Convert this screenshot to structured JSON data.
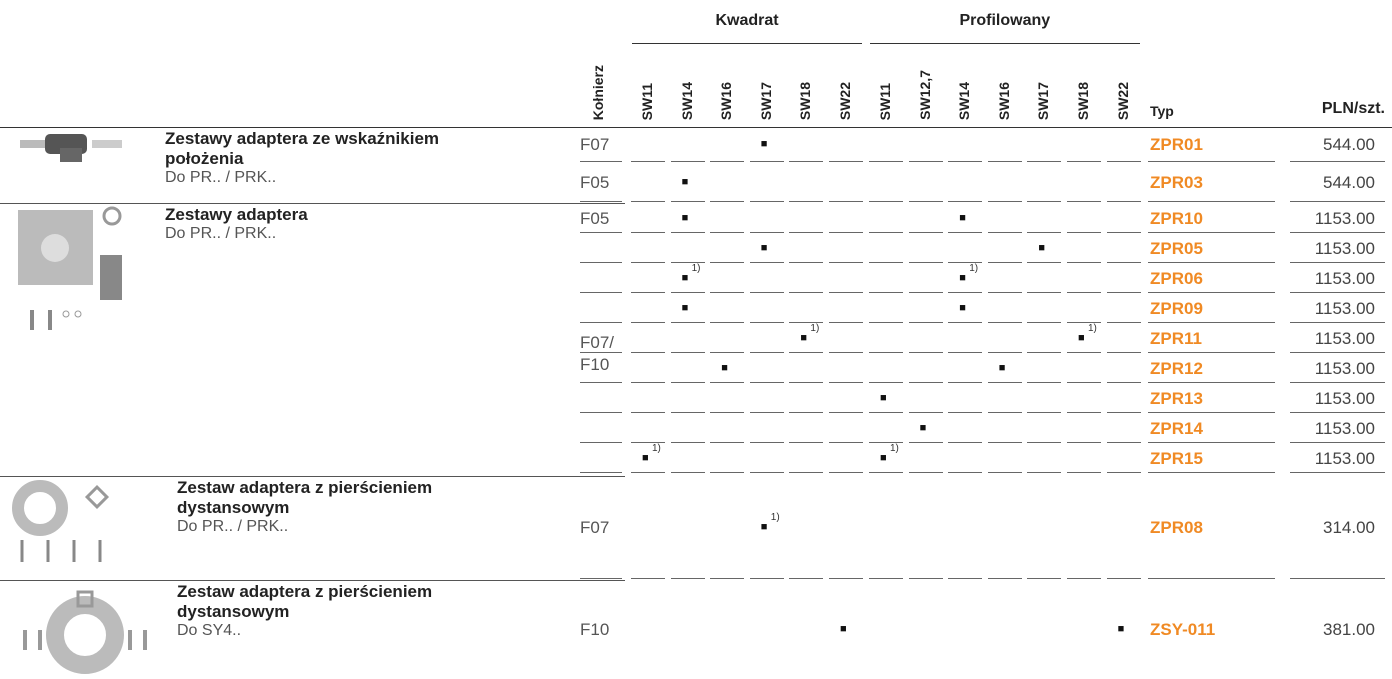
{
  "header": {
    "flange_label": "Kołnierz",
    "type_label": "Typ",
    "price_label": "PLN/szt.",
    "groups": [
      {
        "label": "Kwadrat",
        "columns": [
          "SW11",
          "SW14",
          "SW16",
          "SW17",
          "SW18",
          "SW22"
        ]
      },
      {
        "label": "Profilowany",
        "columns": [
          "SW11",
          "SW12,7",
          "SW14",
          "SW16",
          "SW17",
          "SW18",
          "SW22"
        ]
      }
    ]
  },
  "groups": [
    {
      "title": "Zestawy adaptera ze wskaźnikiem położenia",
      "subtitle": "Do PR.. / PRK..",
      "rows": [
        {
          "flange": "F07",
          "type": "ZPR01",
          "price": "544.00",
          "cells": [
            null,
            null,
            null,
            {
              "mark": "■"
            },
            null,
            null,
            null,
            null,
            null,
            null,
            null,
            null,
            null
          ]
        },
        {
          "flange": "F05",
          "type": "ZPR03",
          "price": "544.00",
          "cells": [
            null,
            {
              "mark": "■"
            },
            null,
            null,
            null,
            null,
            null,
            null,
            null,
            null,
            null,
            null,
            null
          ]
        }
      ]
    },
    {
      "title": "Zestawy adaptera",
      "subtitle": "Do PR.. / PRK..",
      "rows": [
        {
          "flange": "F05",
          "type": "ZPR10",
          "price": "1153.00",
          "cells": [
            null,
            {
              "mark": "■"
            },
            null,
            null,
            null,
            null,
            null,
            null,
            {
              "mark": "■"
            },
            null,
            null,
            null,
            null
          ]
        },
        {
          "flange": "F07/\nF10",
          "type": "ZPR05",
          "price": "1153.00",
          "cells": [
            null,
            null,
            null,
            {
              "mark": "■"
            },
            null,
            null,
            null,
            null,
            null,
            null,
            {
              "mark": "■"
            },
            null,
            null
          ]
        },
        {
          "type": "ZPR06",
          "price": "1153.00",
          "cells": [
            null,
            {
              "mark": "■",
              "note": "1)"
            },
            null,
            null,
            null,
            null,
            null,
            null,
            {
              "mark": "■",
              "note": "1)"
            },
            null,
            null,
            null,
            null
          ]
        },
        {
          "type": "ZPR09",
          "price": "1153.00",
          "cells": [
            null,
            {
              "mark": "■"
            },
            null,
            null,
            null,
            null,
            null,
            null,
            {
              "mark": "■"
            },
            null,
            null,
            null,
            null
          ]
        },
        {
          "type": "ZPR11",
          "price": "1153.00",
          "cells": [
            null,
            null,
            null,
            null,
            {
              "mark": "■",
              "note": "1)"
            },
            null,
            null,
            null,
            null,
            null,
            null,
            {
              "mark": "■",
              "note": "1)"
            },
            null
          ]
        },
        {
          "type": "ZPR12",
          "price": "1153.00",
          "cells": [
            null,
            null,
            {
              "mark": "■"
            },
            null,
            null,
            null,
            null,
            null,
            null,
            {
              "mark": "■"
            },
            null,
            null,
            null
          ]
        },
        {
          "type": "ZPR13",
          "price": "1153.00",
          "cells": [
            null,
            null,
            null,
            null,
            null,
            null,
            {
              "mark": "■"
            },
            null,
            null,
            null,
            null,
            null,
            null
          ]
        },
        {
          "type": "ZPR14",
          "price": "1153.00",
          "cells": [
            null,
            null,
            null,
            null,
            null,
            null,
            null,
            {
              "mark": "■"
            },
            null,
            null,
            null,
            null,
            null
          ]
        },
        {
          "type": "ZPR15",
          "price": "1153.00",
          "cells": [
            {
              "mark": "■",
              "note": "1)"
            },
            null,
            null,
            null,
            null,
            null,
            {
              "mark": "■",
              "note": "1)"
            },
            null,
            null,
            null,
            null,
            null,
            null
          ]
        }
      ]
    },
    {
      "title": "Zestaw adaptera z pierścieniem dystansowym",
      "subtitle": "Do PR.. / PRK..",
      "rows": [
        {
          "flange": "F07",
          "type": "ZPR08",
          "price": "314.00",
          "cells": [
            null,
            null,
            null,
            {
              "mark": "■",
              "note": "1)"
            },
            null,
            null,
            null,
            null,
            null,
            null,
            null,
            null,
            null
          ]
        }
      ]
    },
    {
      "title": "Zestaw adaptera z pierścieniem dystansowym",
      "subtitle": "Do SY4..",
      "rows": [
        {
          "flange": "F10",
          "type": "ZSY-011",
          "price": "381.00",
          "cells": [
            null,
            null,
            null,
            null,
            null,
            {
              "mark": "■"
            },
            null,
            null,
            null,
            null,
            null,
            null,
            {
              "mark": "■"
            }
          ]
        }
      ]
    }
  ]
}
